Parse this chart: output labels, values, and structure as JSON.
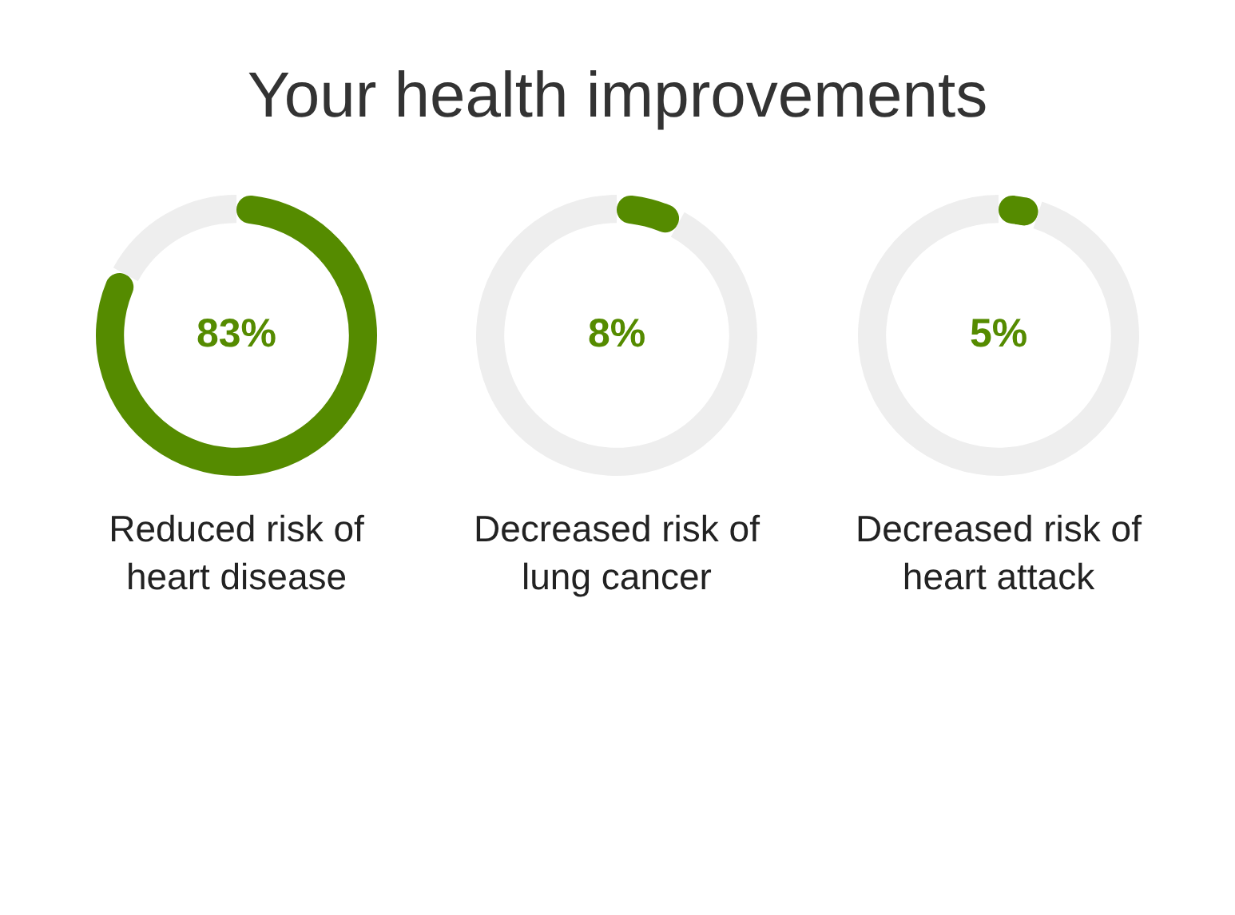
{
  "chart_data": [
    {
      "type": "donut",
      "title": "Your health improvements",
      "xlabel": "Reduced risk of heart disease",
      "categories": [
        null,
        null
      ],
      "values": [
        83,
        17
      ],
      "colors": [
        "#558b00",
        "#eeeeee"
      ],
      "value_labels": [
        "83%",
        null
      ]
    },
    {
      "type": "donut",
      "xlabel": "Decreased risk of lung cancer",
      "categories": [
        null,
        null
      ],
      "values": [
        8,
        92
      ],
      "colors": [
        "#558b00",
        "#eeeeee"
      ],
      "value_labels": [
        "8%",
        null
      ]
    },
    {
      "type": "donut",
      "xlabel": "Decreased risk of heart attack",
      "categories": [
        null,
        null
      ],
      "values": [
        5,
        95
      ],
      "colors": [
        "#558b00",
        "#eeeeee"
      ],
      "value_labels": [
        "5%",
        null
      ]
    }
  ]
}
